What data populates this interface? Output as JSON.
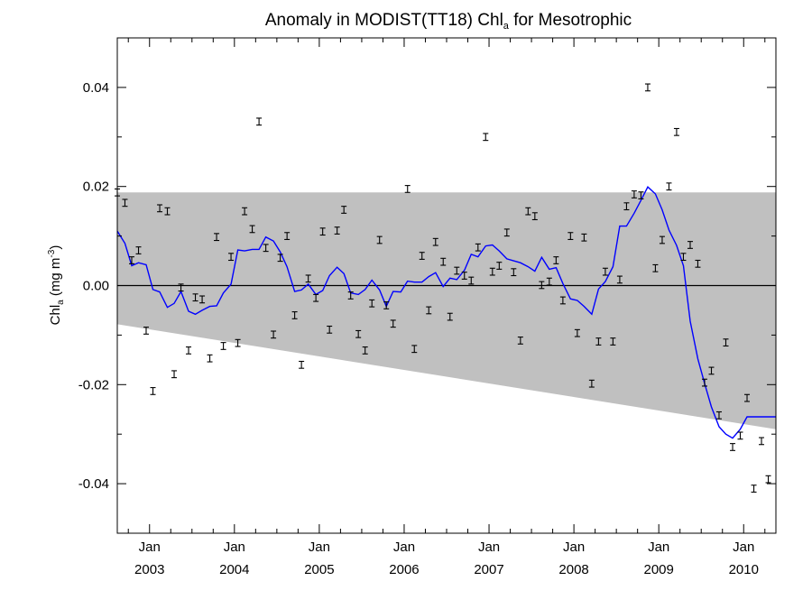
{
  "chart_data": {
    "type": "line",
    "title": "Anomaly in MODIST(TT18) Chl",
    "title_subscript": "a",
    "title_suffix": " for Mesotrophic",
    "ylabel": {
      "main": "Chl",
      "sub": "a",
      "unit_open": " (mg m",
      "unit_sup": "-3",
      "unit_close": ")"
    },
    "xlim": [
      2002.62,
      2010.38
    ],
    "ylim": [
      -0.05,
      0.05
    ],
    "y_ticks": [
      -0.04,
      -0.02,
      0.0,
      0.02,
      0.04
    ],
    "y_tick_labels": [
      "-0.04",
      "-0.02",
      "0.00",
      "0.02",
      "0.04"
    ],
    "x_ticks": [
      {
        "x": 2003.0,
        "line1": "Jan",
        "line2": "2003"
      },
      {
        "x": 2004.0,
        "line1": "Jan",
        "line2": "2004"
      },
      {
        "x": 2005.0,
        "line1": "Jan",
        "line2": "2005"
      },
      {
        "x": 2006.0,
        "line1": "Jan",
        "line2": "2006"
      },
      {
        "x": 2007.0,
        "line1": "Jan",
        "line2": "2007"
      },
      {
        "x": 2008.0,
        "line1": "Jan",
        "line2": "2008"
      },
      {
        "x": 2009.0,
        "line1": "Jan",
        "line2": "2009"
      },
      {
        "x": 2010.0,
        "line1": "Jan",
        "line2": "2010"
      }
    ],
    "grid": false,
    "zero_line": 0.0,
    "band": {
      "color": "#c0c0c0",
      "upper": [
        [
          2002.62,
          0.0188
        ],
        [
          2010.38,
          0.0188
        ]
      ],
      "lower": [
        [
          2002.62,
          -0.0078
        ],
        [
          2010.38,
          -0.029
        ]
      ]
    },
    "line_series": {
      "color": "#0000ff",
      "x": [
        2002.62,
        2002.71,
        2002.79,
        2002.87,
        2002.96,
        2003.04,
        2003.12,
        2003.21,
        2003.29,
        2003.37,
        2003.46,
        2003.54,
        2003.62,
        2003.71,
        2003.79,
        2003.87,
        2003.96,
        2004.04,
        2004.12,
        2004.21,
        2004.29,
        2004.37,
        2004.46,
        2004.54,
        2004.62,
        2004.71,
        2004.79,
        2004.87,
        2004.96,
        2005.04,
        2005.12,
        2005.21,
        2005.29,
        2005.37,
        2005.46,
        2005.54,
        2005.62,
        2005.71,
        2005.79,
        2005.87,
        2005.96,
        2006.04,
        2006.12,
        2006.21,
        2006.29,
        2006.37,
        2006.46,
        2006.54,
        2006.62,
        2006.71,
        2006.79,
        2006.87,
        2006.96,
        2007.04,
        2007.12,
        2007.21,
        2007.29,
        2007.37,
        2007.46,
        2007.54,
        2007.62,
        2007.71,
        2007.79,
        2007.87,
        2007.96,
        2008.04,
        2008.12,
        2008.21,
        2008.29,
        2008.37,
        2008.46,
        2008.54,
        2008.62,
        2008.71,
        2008.79,
        2008.87,
        2008.96,
        2009.04,
        2009.12,
        2009.21,
        2009.29,
        2009.37,
        2009.46,
        2009.54,
        2009.62,
        2009.71,
        2009.79,
        2009.87,
        2009.96,
        2010.04,
        2010.12,
        2010.21,
        2010.29,
        2010.38
      ],
      "y": [
        0.011,
        0.0085,
        0.004,
        0.0046,
        0.0042,
        -0.0008,
        -0.0013,
        -0.0044,
        -0.0036,
        -0.0012,
        -0.0052,
        -0.0058,
        -0.005,
        -0.0042,
        -0.0041,
        -0.0015,
        0.0003,
        0.0072,
        0.007,
        0.0073,
        0.0073,
        0.0098,
        0.009,
        0.0068,
        0.0038,
        -0.0012,
        -0.0009,
        0.0003,
        -0.0018,
        -0.001,
        0.002,
        0.0037,
        0.0024,
        -0.0015,
        -0.0018,
        -0.0008,
        0.0011,
        -0.0009,
        -0.0042,
        -0.0012,
        -0.0013,
        0.0009,
        0.0007,
        0.0007,
        0.0018,
        0.0026,
        -0.0002,
        0.0015,
        0.0012,
        0.0031,
        0.0063,
        0.0058,
        0.008,
        0.0082,
        0.007,
        0.0054,
        0.005,
        0.0046,
        0.0038,
        0.0029,
        0.0057,
        0.0033,
        0.0036,
        0.0004,
        -0.0027,
        -0.003,
        -0.0042,
        -0.0058,
        -0.0007,
        0.0008,
        0.0038,
        0.012,
        0.012,
        0.0146,
        0.0172,
        0.0199,
        0.0185,
        0.0153,
        0.0112,
        0.0081,
        0.004,
        -0.0072,
        -0.0148,
        -0.0198,
        -0.0245,
        -0.0285,
        -0.03,
        -0.0308,
        -0.029,
        -0.0265,
        -0.0265,
        -0.0265,
        -0.0265,
        -0.0265
      ]
    },
    "error_bars": {
      "half_height": 0.0007,
      "points": [
        [
          2002.62,
          0.0188
        ],
        [
          2002.71,
          0.0167
        ],
        [
          2002.79,
          0.0051
        ],
        [
          2002.87,
          0.0071
        ],
        [
          2002.96,
          -0.0091
        ],
        [
          2003.04,
          -0.0213
        ],
        [
          2003.12,
          0.0156
        ],
        [
          2003.21,
          0.015
        ],
        [
          2003.29,
          -0.0179
        ],
        [
          2003.37,
          -0.0004
        ],
        [
          2003.46,
          -0.0131
        ],
        [
          2003.54,
          -0.0024
        ],
        [
          2003.62,
          -0.0028
        ],
        [
          2003.71,
          -0.0147
        ],
        [
          2003.79,
          0.0098
        ],
        [
          2003.87,
          -0.0122
        ],
        [
          2003.96,
          0.0058
        ],
        [
          2004.04,
          -0.0116
        ],
        [
          2004.12,
          0.015
        ],
        [
          2004.21,
          0.0114
        ],
        [
          2004.29,
          0.0331
        ],
        [
          2004.37,
          0.0076
        ],
        [
          2004.46,
          -0.0099
        ],
        [
          2004.54,
          0.0056
        ],
        [
          2004.62,
          0.01
        ],
        [
          2004.71,
          -0.006
        ],
        [
          2004.79,
          -0.016
        ],
        [
          2004.87,
          0.0014
        ],
        [
          2004.96,
          -0.0025
        ],
        [
          2005.04,
          0.0109
        ],
        [
          2005.12,
          -0.0089
        ],
        [
          2005.21,
          0.0111
        ],
        [
          2005.29,
          0.0153
        ],
        [
          2005.37,
          -0.002
        ],
        [
          2005.46,
          -0.0098
        ],
        [
          2005.54,
          -0.0131
        ],
        [
          2005.62,
          -0.0036
        ],
        [
          2005.71,
          0.0092
        ],
        [
          2005.79,
          -0.004
        ],
        [
          2005.87,
          -0.0077
        ],
        [
          2006.04,
          0.0195
        ],
        [
          2006.12,
          -0.0128
        ],
        [
          2006.21,
          0.006
        ],
        [
          2006.29,
          -0.005
        ],
        [
          2006.37,
          0.0088
        ],
        [
          2006.46,
          0.0048
        ],
        [
          2006.54,
          -0.0063
        ],
        [
          2006.62,
          0.003
        ],
        [
          2006.71,
          0.002
        ],
        [
          2006.79,
          0.001
        ],
        [
          2006.87,
          0.0077
        ],
        [
          2006.96,
          0.03
        ],
        [
          2007.04,
          0.0028
        ],
        [
          2007.12,
          0.004
        ],
        [
          2007.21,
          0.0107
        ],
        [
          2007.29,
          0.0027
        ],
        [
          2007.37,
          -0.0111
        ],
        [
          2007.46,
          0.015
        ],
        [
          2007.54,
          0.014
        ],
        [
          2007.62,
          0.0001
        ],
        [
          2007.71,
          0.0008
        ],
        [
          2007.79,
          0.0051
        ],
        [
          2007.87,
          -0.003
        ],
        [
          2007.96,
          0.01
        ],
        [
          2008.04,
          -0.0096
        ],
        [
          2008.12,
          0.0097
        ],
        [
          2008.21,
          -0.0198
        ],
        [
          2008.29,
          -0.0113
        ],
        [
          2008.37,
          0.0028
        ],
        [
          2008.46,
          -0.0113
        ],
        [
          2008.54,
          0.0012
        ],
        [
          2008.62,
          0.016
        ],
        [
          2008.71,
          0.0184
        ],
        [
          2008.79,
          0.0182
        ],
        [
          2008.87,
          0.04
        ],
        [
          2008.96,
          0.0035
        ],
        [
          2009.04,
          0.0092
        ],
        [
          2009.12,
          0.02
        ],
        [
          2009.21,
          0.031
        ],
        [
          2009.29,
          0.0058
        ],
        [
          2009.37,
          0.0082
        ],
        [
          2009.46,
          0.0044
        ],
        [
          2009.54,
          -0.0196
        ],
        [
          2009.62,
          -0.0172
        ],
        [
          2009.71,
          -0.0262
        ],
        [
          2009.79,
          -0.0115
        ],
        [
          2009.87,
          -0.0326
        ],
        [
          2009.96,
          -0.0303
        ],
        [
          2010.04,
          -0.0227
        ],
        [
          2010.12,
          -0.041
        ],
        [
          2010.21,
          -0.0314
        ],
        [
          2010.29,
          -0.0391
        ]
      ]
    }
  }
}
